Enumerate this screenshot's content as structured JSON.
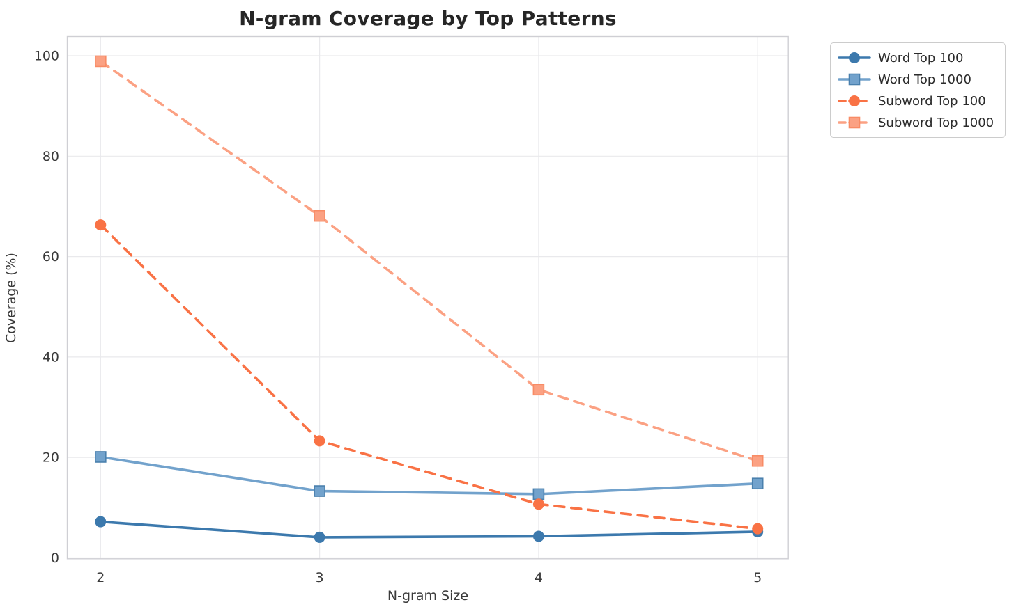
{
  "title": "N-gram Coverage by Top Patterns",
  "chart_data": {
    "type": "line",
    "title": "N-gram Coverage by Top Patterns",
    "xlabel": "N-gram Size",
    "ylabel": "Coverage (%)",
    "x": [
      2,
      3,
      4,
      5
    ],
    "xtick_labels": [
      "2",
      "3",
      "4",
      "5"
    ],
    "ytick_values": [
      0,
      20,
      40,
      60,
      80,
      100
    ],
    "ytick_labels": [
      "0",
      "20",
      "40",
      "60",
      "80",
      "100"
    ],
    "xlim": [
      1.85,
      5.14
    ],
    "ylim": [
      -0.2,
      103.9
    ],
    "grid": true,
    "legend_position": "outside-upper-right",
    "series": [
      {
        "name": "Word Top 100",
        "values": [
          7.2,
          4.1,
          4.3,
          5.2
        ],
        "color": "#3c79ad",
        "edge": "#346a99",
        "linestyle": "solid",
        "marker": "circle"
      },
      {
        "name": "Word Top 1000",
        "values": [
          20.1,
          13.3,
          12.7,
          14.8
        ],
        "color": "#72a2cc",
        "edge": "#4a80ad",
        "linestyle": "solid",
        "marker": "square"
      },
      {
        "name": "Subword Top 100",
        "values": [
          66.3,
          23.3,
          10.7,
          5.8
        ],
        "color": "#f97245",
        "edge": "#ec5f30",
        "linestyle": "dashed",
        "marker": "circle"
      },
      {
        "name": "Subword Top 1000",
        "values": [
          98.9,
          68.1,
          33.5,
          19.3
        ],
        "color": "#fba183",
        "edge": "#f88b65",
        "linestyle": "dashed",
        "marker": "square"
      }
    ],
    "colors": {
      "grid": "#e9e9ec",
      "spine": "#cfcfd4",
      "tick_text": "#3a3a3a",
      "title_text": "#262626",
      "plot_bg": "#ffffff"
    }
  }
}
